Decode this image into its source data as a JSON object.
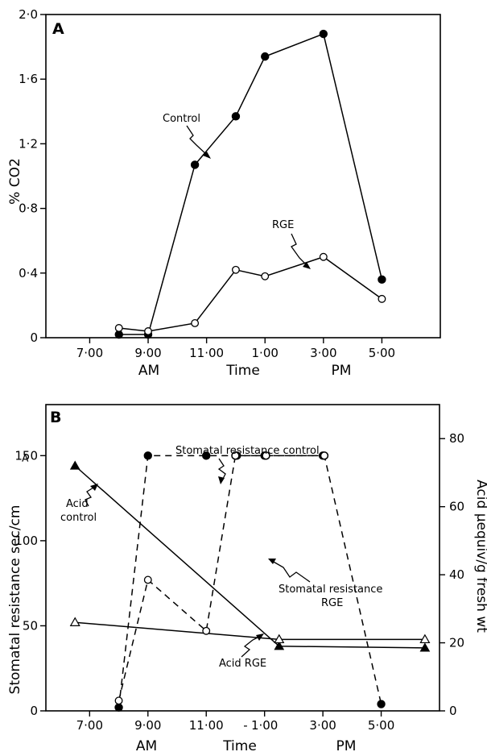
{
  "chart_data": [
    {
      "type": "line",
      "panel": "A",
      "xlabel": "Time",
      "ylabel": "% CO2",
      "x_ticks": [
        7,
        9,
        11,
        13,
        15,
        17
      ],
      "x_tick_labels": [
        "7·00",
        "9·00",
        "11·00",
        "1·00",
        "3·00",
        "5·00"
      ],
      "am_label": "AM",
      "pm_label": "PM",
      "xlim": [
        5.5,
        19
      ],
      "ylim": [
        0,
        2.0
      ],
      "y_ticks": [
        0,
        0.4,
        0.8,
        1.2,
        1.6,
        2.0
      ],
      "y_tick_labels": [
        "0",
        "0·4",
        "0·8",
        "1·2",
        "1·6",
        "2·0"
      ],
      "series": [
        {
          "name": "Control",
          "marker": "filled-circle",
          "x": [
            8,
            9,
            10.6,
            12,
            13,
            15,
            17
          ],
          "y": [
            0.02,
            0.02,
            1.07,
            1.37,
            1.74,
            1.88,
            0.36
          ]
        },
        {
          "name": "RGE",
          "marker": "open-circle",
          "x": [
            8,
            9,
            10.6,
            12,
            13,
            15,
            17
          ],
          "y": [
            0.06,
            0.04,
            0.09,
            0.42,
            0.38,
            0.5,
            0.24
          ]
        }
      ]
    },
    {
      "type": "line",
      "panel": "B",
      "xlabel": "Time",
      "ylabel_left": "Stomatal resistance sec/cm",
      "ylabel_right": "Acid µequiv/g fresh wt",
      "x_ticks": [
        7,
        9,
        11,
        13,
        15,
        17
      ],
      "x_tick_labels": [
        "7·00",
        "9·00",
        "11·00",
        "1·00",
        "3·00",
        "5·00"
      ],
      "mid_tick_label": "-",
      "am_label": "AM",
      "pm_label": "PM",
      "xlim": [
        5.5,
        19
      ],
      "ylim_left": [
        0,
        180
      ],
      "y_ticks_left": [
        0,
        50,
        100,
        150
      ],
      "ylim_right": [
        0,
        90
      ],
      "y_ticks_right": [
        0,
        20,
        40,
        60,
        80
      ],
      "left_axis_break": ">",
      "series": [
        {
          "name": "Stomatal resistance control",
          "axis": "left",
          "style": "dashed",
          "marker": "filled-circle",
          "x": [
            8,
            9,
            11,
            12,
            12.05,
            13,
            13.05,
            15,
            15.05,
            17
          ],
          "y": [
            2,
            150,
            150,
            150,
            150,
            150,
            150,
            150,
            150,
            4
          ]
        },
        {
          "name": "Stomatal resistance RGE",
          "axis": "left",
          "style": "dashed",
          "marker": "open-circle",
          "x": [
            8,
            9,
            11,
            12,
            13.05,
            15.05
          ],
          "y": [
            6,
            77,
            47,
            150,
            150,
            150
          ]
        },
        {
          "name": "Acid control",
          "axis": "right",
          "style": "solid",
          "marker": "filled-triangle",
          "x": [
            6.5,
            13.5,
            18.5
          ],
          "y": [
            72,
            19,
            18.5
          ]
        },
        {
          "name": "Acid RGE",
          "axis": "right",
          "style": "solid",
          "marker": "open-triangle",
          "x": [
            6.5,
            13.5,
            18.5
          ],
          "y": [
            26,
            21,
            21
          ]
        }
      ],
      "annotations": {
        "stomatal_control": "Stomatal resistance control",
        "acid_control_1": "Acid",
        "acid_control_2": "control",
        "stomatal_rge_1": "Stomatal resistance",
        "stomatal_rge_2": "RGE",
        "acid_rge": "Acid RGE"
      }
    }
  ]
}
